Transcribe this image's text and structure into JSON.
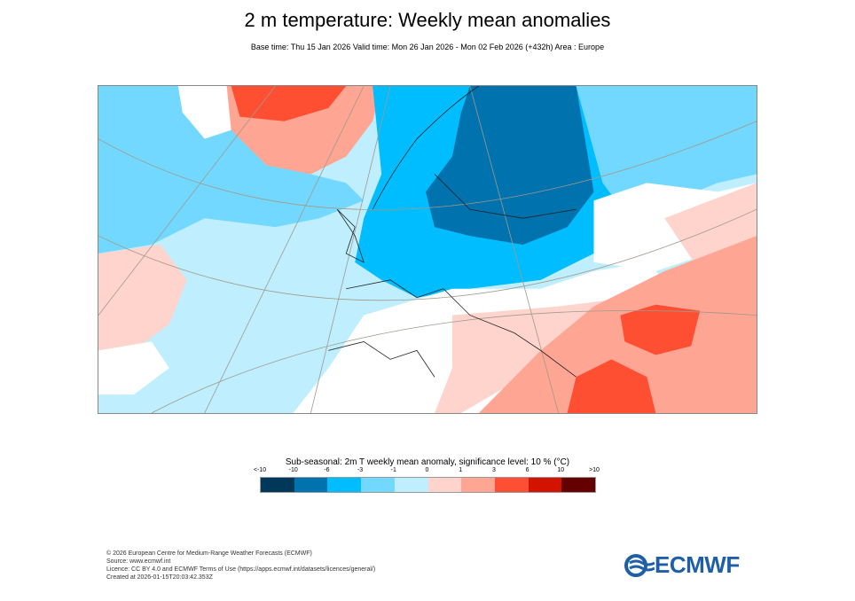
{
  "title": "2 m temperature: Weekly mean anomalies",
  "subtitle": "Base time: Thu 15 Jan 2026 Valid time: Mon 26 Jan 2026 - Mon 02 Feb 2026 (+432h) Area : Europe",
  "chart_data": {
    "type": "heatmap",
    "title": "2 m temperature: Weekly mean anomalies",
    "area": "Europe",
    "legend": {
      "title": "Sub-seasonal: 2m T weekly mean anomaly, significance level: 10 % (°C)",
      "tick_labels": [
        "<-10",
        "-10",
        "-6",
        "-3",
        "-1",
        "0",
        "1",
        "3",
        "6",
        "10",
        ">10"
      ],
      "colors": [
        "#00385a",
        "#0072ad",
        "#00bdff",
        "#73d8ff",
        "#bfeeff",
        "#ffd4cc",
        "#ffa594",
        "#ff4f33",
        "#d21300",
        "#650000"
      ]
    }
  },
  "footer": {
    "lines": [
      "© 2026 European Centre for Medium-Range Weather Forecasts (ECMWF)",
      "Source: www.ecmwf.int",
      "Licence: CC BY 4.0 and ECMWF Terms of Use (https://apps.ecmwf.int/datasets/licences/general/)",
      "Created at 2026-01-15T20:03:42.353Z"
    ]
  },
  "logo": {
    "text": "ECMWF"
  }
}
